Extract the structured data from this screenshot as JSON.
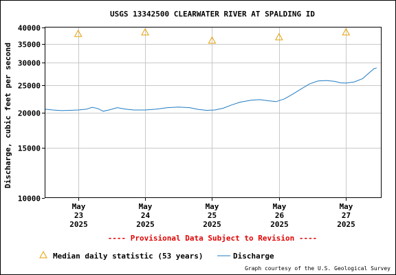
{
  "chart_data": {
    "type": "line",
    "title": "USGS 13342500 CLEARWATER RIVER AT SPALDING ID",
    "ylabel": "Discharge, cubic feet per second",
    "y_scale": "log",
    "ylim": [
      10000,
      40000
    ],
    "y_ticks": [
      {
        "value": 10000,
        "label": "10000"
      },
      {
        "value": 15000,
        "label": "15000"
      },
      {
        "value": 20000,
        "label": "20000"
      },
      {
        "value": 25000,
        "label": "25000"
      },
      {
        "value": 30000,
        "label": "30000"
      },
      {
        "value": 35000,
        "label": "35000"
      },
      {
        "value": 40000,
        "label": "40000"
      }
    ],
    "xlim": [
      "2025-05-22 12:00",
      "2025-05-27 12:30"
    ],
    "x_ticks": [
      {
        "value": "2025-05-23",
        "line1": "May",
        "line2": "23",
        "line3": "2025"
      },
      {
        "value": "2025-05-24",
        "line1": "May",
        "line2": "24",
        "line3": "2025"
      },
      {
        "value": "2025-05-25",
        "line1": "May",
        "line2": "25",
        "line3": "2025"
      },
      {
        "value": "2025-05-26",
        "line1": "May",
        "line2": "26",
        "line3": "2025"
      },
      {
        "value": "2025-05-27",
        "line1": "May",
        "line2": "27",
        "line3": "2025"
      }
    ],
    "grid": true,
    "series": [
      {
        "name": "Median daily statistic (53 years)",
        "marker": "triangle",
        "color": "#e69f00",
        "points": [
          {
            "x": "2025-05-23 00:00",
            "y": 38000
          },
          {
            "x": "2025-05-24 00:00",
            "y": 38500
          },
          {
            "x": "2025-05-25 00:00",
            "y": 36000
          },
          {
            "x": "2025-05-26 00:00",
            "y": 37000
          },
          {
            "x": "2025-05-27 00:00",
            "y": 38500
          }
        ]
      },
      {
        "name": "Discharge",
        "marker": "line",
        "color": "#1f7bc2",
        "points": [
          {
            "x": "2025-05-22 12:00",
            "y": 20600
          },
          {
            "x": "2025-05-22 15:00",
            "y": 20450
          },
          {
            "x": "2025-05-22 18:00",
            "y": 20350
          },
          {
            "x": "2025-05-22 21:00",
            "y": 20400
          },
          {
            "x": "2025-05-23 00:00",
            "y": 20450
          },
          {
            "x": "2025-05-23 03:00",
            "y": 20600
          },
          {
            "x": "2025-05-23 05:00",
            "y": 20900
          },
          {
            "x": "2025-05-23 07:00",
            "y": 20700
          },
          {
            "x": "2025-05-23 09:00",
            "y": 20250
          },
          {
            "x": "2025-05-23 11:00",
            "y": 20450
          },
          {
            "x": "2025-05-23 14:00",
            "y": 20850
          },
          {
            "x": "2025-05-23 17:00",
            "y": 20600
          },
          {
            "x": "2025-05-23 20:00",
            "y": 20450
          },
          {
            "x": "2025-05-24 00:00",
            "y": 20450
          },
          {
            "x": "2025-05-24 04:00",
            "y": 20600
          },
          {
            "x": "2025-05-24 08:00",
            "y": 20850
          },
          {
            "x": "2025-05-24 12:00",
            "y": 20950
          },
          {
            "x": "2025-05-24 16:00",
            "y": 20850
          },
          {
            "x": "2025-05-24 19:00",
            "y": 20550
          },
          {
            "x": "2025-05-24 22:00",
            "y": 20400
          },
          {
            "x": "2025-05-25 01:00",
            "y": 20450
          },
          {
            "x": "2025-05-25 04:00",
            "y": 20750
          },
          {
            "x": "2025-05-25 07:00",
            "y": 21300
          },
          {
            "x": "2025-05-25 10:00",
            "y": 21800
          },
          {
            "x": "2025-05-25 14:00",
            "y": 22150
          },
          {
            "x": "2025-05-25 17:00",
            "y": 22250
          },
          {
            "x": "2025-05-25 20:00",
            "y": 22050
          },
          {
            "x": "2025-05-25 23:00",
            "y": 21900
          },
          {
            "x": "2025-05-26 02:00",
            "y": 22400
          },
          {
            "x": "2025-05-26 05:00",
            "y": 23300
          },
          {
            "x": "2025-05-26 08:00",
            "y": 24300
          },
          {
            "x": "2025-05-26 11:00",
            "y": 25300
          },
          {
            "x": "2025-05-26 14:00",
            "y": 25900
          },
          {
            "x": "2025-05-26 17:00",
            "y": 26000
          },
          {
            "x": "2025-05-26 20:00",
            "y": 25800
          },
          {
            "x": "2025-05-26 22:00",
            "y": 25500
          },
          {
            "x": "2025-05-27 00:00",
            "y": 25450
          },
          {
            "x": "2025-05-27 03:00",
            "y": 25700
          },
          {
            "x": "2025-05-27 06:00",
            "y": 26400
          },
          {
            "x": "2025-05-27 08:00",
            "y": 27500
          },
          {
            "x": "2025-05-27 10:00",
            "y": 28600
          },
          {
            "x": "2025-05-27 11:00",
            "y": 28800
          }
        ]
      }
    ],
    "provisional_note": "---- Provisional Data Subject to Revision ----",
    "legend": {
      "placement": "bottom",
      "median_label": "Median daily statistic (53 years)",
      "discharge_label": "Discharge"
    },
    "credit": "Graph courtesy of the U.S. Geological Survey"
  }
}
